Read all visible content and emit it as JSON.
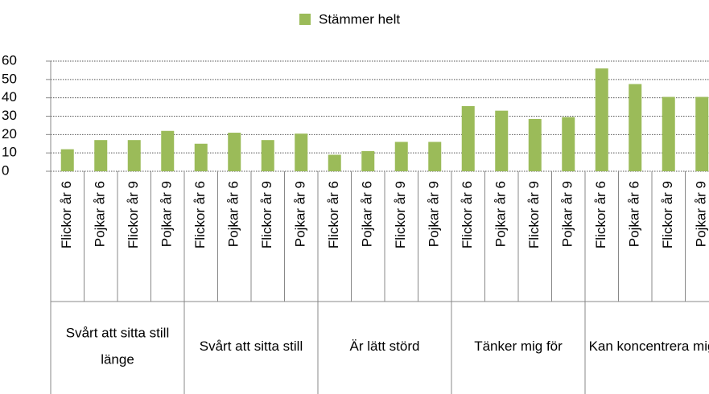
{
  "chart_data": {
    "type": "bar",
    "legend": "Stämmer helt",
    "color": "#9bbb59",
    "categories": [
      "Flickor år 6",
      "Pojkar år 6",
      "Flickor år 9",
      "Pojkar år 9",
      "Flickor år 6",
      "Pojkar år 6",
      "Flickor år 9",
      "Pojkar år 9",
      "Flickor år 6",
      "Pojkar år 6",
      "Flickor år 9",
      "Pojkar år 9",
      "Flickor år 6",
      "Pojkar år 6",
      "Flickor år 9",
      "Pojkar år 9",
      "Flickor år 6",
      "Pojkar år 6",
      "Flickor år 9",
      "Pojkar år 9"
    ],
    "groups": [
      "Svårt att sitta still länge",
      "Svårt att sitta still",
      "Är lätt störd",
      "Tänker mig för",
      "Kan koncentrera mig"
    ],
    "values": [
      12,
      17,
      17,
      22,
      15,
      21,
      17,
      20.5,
      9,
      11,
      16,
      16,
      35.5,
      33,
      28.5,
      29.5,
      56,
      47.5,
      40.5,
      40.5
    ],
    "ylim": [
      0,
      60
    ],
    "yticks": [
      0,
      10,
      20,
      30,
      40,
      50,
      60
    ],
    "grid": true
  }
}
